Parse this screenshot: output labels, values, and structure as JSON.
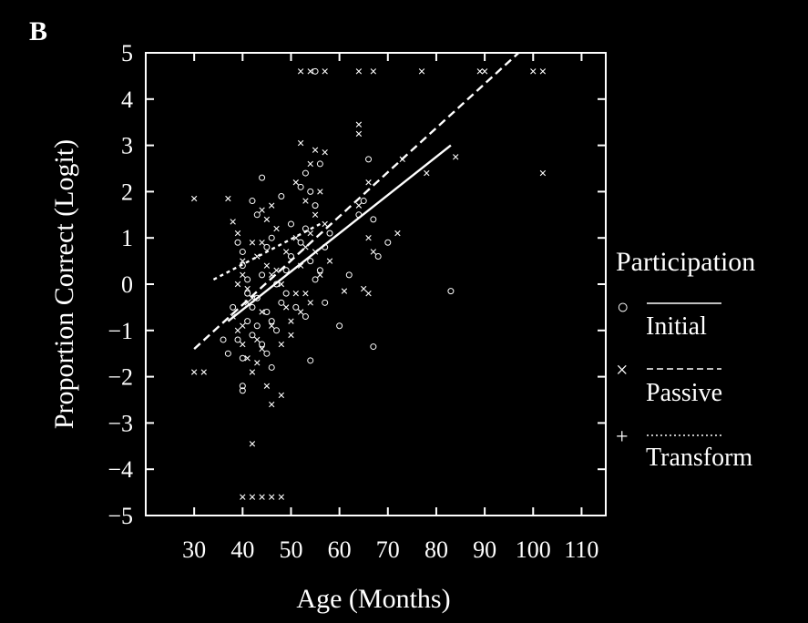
{
  "chart_data": {
    "type": "scatter",
    "panel_label": "B",
    "xlabel": "Age (Months)",
    "ylabel": "Proportion Correct (Logit)",
    "xlim": [
      20,
      115
    ],
    "ylim": [
      -5,
      5
    ],
    "xticks": [
      30,
      40,
      50,
      60,
      70,
      80,
      90,
      100,
      110
    ],
    "yticks": [
      5,
      4,
      3,
      2,
      1,
      0,
      -1,
      -2,
      -3,
      -4,
      -5
    ],
    "ytick_labels": [
      "5",
      "4",
      "3",
      "2",
      "1",
      "0",
      "−1",
      "−2",
      "−3",
      "−4",
      "−5"
    ],
    "grid": false,
    "legend": {
      "title": "Participation",
      "placement": "right",
      "entries": [
        {
          "marker": "○",
          "line": "solid",
          "label": "Initial"
        },
        {
          "marker": "×",
          "line": "dashed",
          "label": "Passive"
        },
        {
          "marker": "+",
          "line": "dotted",
          "label": "Transform"
        }
      ]
    },
    "series": [
      {
        "label": "Initial",
        "marker": "circle",
        "points": [
          [
            39,
            0.9
          ],
          [
            40,
            0.7
          ],
          [
            40,
            0.4
          ],
          [
            41,
            0.1
          ],
          [
            41,
            -0.2
          ],
          [
            42,
            -0.5
          ],
          [
            43,
            -0.3
          ],
          [
            44,
            0.2
          ],
          [
            45,
            -0.6
          ],
          [
            46,
            -0.8
          ],
          [
            47,
            -1.0
          ],
          [
            48,
            -0.4
          ],
          [
            49,
            0.3
          ],
          [
            50,
            0.6
          ],
          [
            52,
            0.9
          ],
          [
            53,
            1.2
          ],
          [
            54,
            0.5
          ],
          [
            55,
            0.1
          ],
          [
            56,
            0.3
          ],
          [
            57,
            0.8
          ],
          [
            44,
            2.3
          ],
          [
            42,
            1.8
          ],
          [
            43,
            1.5
          ],
          [
            46,
            1.0
          ],
          [
            38,
            -0.5
          ],
          [
            39,
            -1.2
          ],
          [
            40,
            -1.6
          ],
          [
            41,
            -0.8
          ],
          [
            42,
            -1.1
          ],
          [
            44,
            -1.3
          ],
          [
            45,
            -1.5
          ],
          [
            46,
            -1.8
          ],
          [
            40,
            -2.2
          ],
          [
            40,
            -2.3
          ],
          [
            60,
            -0.9
          ],
          [
            62,
            0.2
          ],
          [
            64,
            1.5
          ],
          [
            65,
            1.8
          ],
          [
            67,
            1.4
          ],
          [
            67,
            -1.35
          ],
          [
            68,
            0.6
          ],
          [
            70,
            0.9
          ],
          [
            83,
            -0.15
          ],
          [
            52,
            2.1
          ],
          [
            53,
            2.4
          ],
          [
            54,
            2.0
          ],
          [
            55,
            1.7
          ],
          [
            56,
            2.6
          ],
          [
            57,
            -0.4
          ],
          [
            54,
            -1.65
          ],
          [
            37,
            -1.5
          ],
          [
            43,
            -0.9
          ],
          [
            47,
            0.0
          ],
          [
            49,
            -0.2
          ],
          [
            51,
            -0.5
          ],
          [
            53,
            -0.7
          ],
          [
            55,
            4.6
          ],
          [
            66,
            2.7
          ],
          [
            58,
            1.1
          ],
          [
            45,
            0.8
          ],
          [
            36,
            -1.2
          ],
          [
            50,
            1.3
          ],
          [
            48,
            1.9
          ]
        ]
      },
      {
        "label": "Passive",
        "marker": "x",
        "points": [
          [
            30,
            1.85
          ],
          [
            37,
            1.85
          ],
          [
            30,
            -1.9
          ],
          [
            32,
            -1.9
          ],
          [
            38,
            1.35
          ],
          [
            39,
            1.1
          ],
          [
            40,
            0.5
          ],
          [
            40,
            0.2
          ],
          [
            41,
            -0.1
          ],
          [
            42,
            -0.3
          ],
          [
            43,
            0.6
          ],
          [
            44,
            0.9
          ],
          [
            45,
            1.4
          ],
          [
            46,
            1.7
          ],
          [
            47,
            0.3
          ],
          [
            48,
            0.0
          ],
          [
            49,
            -0.5
          ],
          [
            50,
            -0.8
          ],
          [
            51,
            -0.2
          ],
          [
            52,
            0.4
          ],
          [
            53,
            0.8
          ],
          [
            54,
            1.1
          ],
          [
            55,
            1.5
          ],
          [
            56,
            2.0
          ],
          [
            52,
            3.05
          ],
          [
            54,
            2.6
          ],
          [
            55,
            2.9
          ],
          [
            57,
            2.85
          ],
          [
            51,
            2.2
          ],
          [
            53,
            1.8
          ],
          [
            38,
            -0.7
          ],
          [
            39,
            -1.0
          ],
          [
            40,
            -1.3
          ],
          [
            41,
            -1.6
          ],
          [
            42,
            -1.9
          ],
          [
            43,
            -1.7
          ],
          [
            44,
            -1.4
          ],
          [
            45,
            -2.2
          ],
          [
            46,
            -2.6
          ],
          [
            48,
            -2.4
          ],
          [
            42,
            -3.45
          ],
          [
            40,
            -4.6
          ],
          [
            42,
            -4.6
          ],
          [
            44,
            -4.6
          ],
          [
            46,
            -4.6
          ],
          [
            48,
            -4.6
          ],
          [
            52,
            4.6
          ],
          [
            54,
            4.6
          ],
          [
            57,
            4.6
          ],
          [
            64,
            4.6
          ],
          [
            67,
            4.6
          ],
          [
            77,
            4.6
          ],
          [
            89,
            4.6
          ],
          [
            90,
            4.6
          ],
          [
            100,
            4.6
          ],
          [
            102,
            4.6
          ],
          [
            64,
            3.45
          ],
          [
            64,
            3.25
          ],
          [
            73,
            2.7
          ],
          [
            78,
            2.4
          ],
          [
            84,
            2.75
          ],
          [
            102,
            2.4
          ],
          [
            66,
            1.0
          ],
          [
            67,
            0.7
          ],
          [
            72,
            1.1
          ],
          [
            65,
            -0.1
          ],
          [
            66,
            -0.2
          ],
          [
            61,
            -0.15
          ],
          [
            58,
            0.5
          ],
          [
            56,
            0.2
          ],
          [
            54,
            -0.4
          ],
          [
            52,
            -0.6
          ],
          [
            50,
            -1.1
          ],
          [
            48,
            -1.3
          ],
          [
            46,
            -0.9
          ],
          [
            44,
            -0.6
          ],
          [
            43,
            -1.2
          ],
          [
            41,
            -0.4
          ],
          [
            39,
            0.0
          ],
          [
            49,
            0.7
          ],
          [
            51,
            1.0
          ],
          [
            47,
            1.2
          ],
          [
            45,
            0.4
          ],
          [
            55,
            0.7
          ],
          [
            53,
            -0.2
          ],
          [
            57,
            1.3
          ],
          [
            64,
            1.7
          ],
          [
            66,
            2.2
          ],
          [
            40,
            -0.9
          ],
          [
            42,
            0.9
          ],
          [
            44,
            1.6
          ],
          [
            46,
            0.2
          ]
        ]
      }
    ],
    "fit_lines": [
      {
        "label": "Initial",
        "style": "solid",
        "x": [
          37,
          83
        ],
        "y": [
          -0.8,
          3.0
        ]
      },
      {
        "label": "Passive",
        "style": "dashed",
        "x": [
          30,
          97
        ],
        "y": [
          -1.4,
          5.0
        ]
      },
      {
        "label": "Transform",
        "style": "dotted",
        "x": [
          34,
          56
        ],
        "y": [
          0.1,
          1.3
        ]
      }
    ]
  }
}
